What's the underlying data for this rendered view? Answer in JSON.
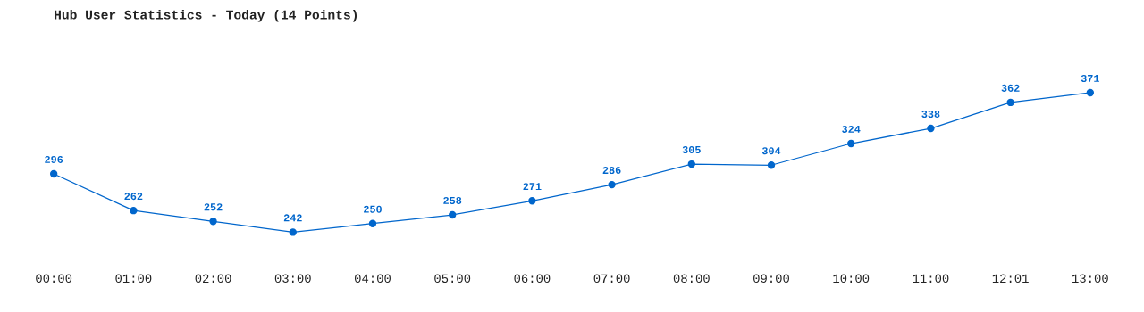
{
  "chart_data": {
    "type": "line",
    "title": "Hub User Statistics - Today (14 Points)",
    "categories": [
      "00:00",
      "01:00",
      "02:00",
      "03:00",
      "04:00",
      "05:00",
      "06:00",
      "07:00",
      "08:00",
      "09:00",
      "10:00",
      "11:00",
      "12:01",
      "13:00"
    ],
    "series": [
      {
        "color": "#0066cc",
        "values": [
          296,
          262,
          252,
          242,
          250,
          258,
          271,
          286,
          305,
          304,
          324,
          338,
          362,
          371
        ]
      }
    ],
    "data_labels": true,
    "marker": "circle",
    "line_style": "solid",
    "grid": false,
    "legend": false
  }
}
